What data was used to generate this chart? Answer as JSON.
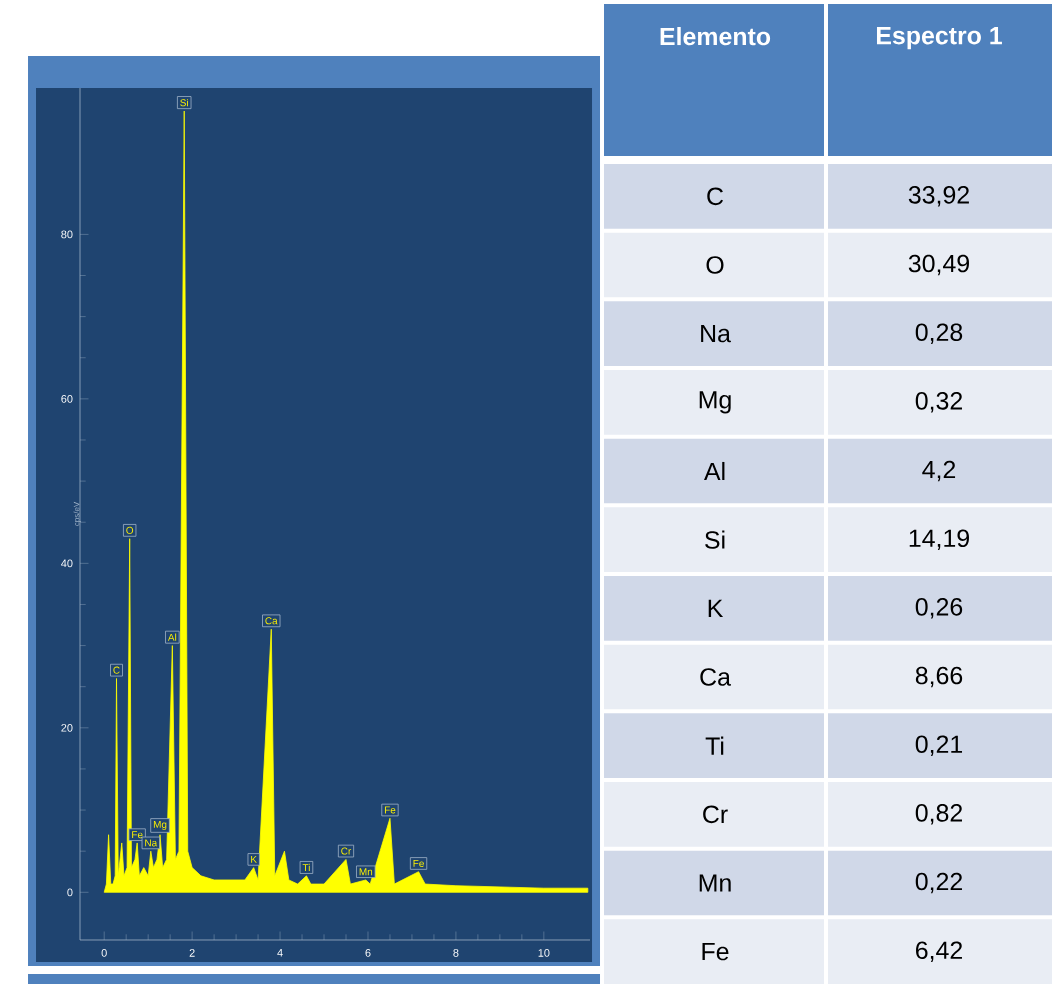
{
  "chart_data": [
    {
      "type": "area",
      "ylabel": "cps/eV",
      "xlim": [
        -0.55,
        11.05
      ],
      "ylim": [
        -5.8,
        97.8
      ],
      "xticks": [
        0,
        2,
        4,
        6,
        8,
        10
      ],
      "yticks": [
        0,
        20,
        40,
        60,
        80
      ],
      "series": [
        {
          "color": "#ffff00",
          "x": [
            0,
            0.05,
            0.1,
            0.15,
            0.2,
            0.25,
            0.28,
            0.32,
            0.4,
            0.45,
            0.52,
            0.58,
            0.62,
            0.7,
            0.75,
            0.8,
            0.9,
            1.0,
            1.06,
            1.12,
            1.2,
            1.27,
            1.33,
            1.42,
            1.55,
            1.62,
            1.7,
            1.82,
            1.9,
            2.0,
            2.2,
            2.5,
            2.8,
            3.0,
            3.2,
            3.4,
            3.5,
            3.8,
            3.88,
            4.1,
            4.2,
            4.4,
            4.6,
            4.7,
            5.0,
            5.5,
            5.6,
            5.95,
            6.05,
            6.5,
            6.6,
            7.15,
            7.3,
            8,
            10,
            11
          ],
          "values": [
            0,
            1,
            7,
            1,
            1,
            2,
            26,
            2,
            6,
            2,
            3,
            43,
            3,
            4,
            6,
            2,
            3,
            2,
            5,
            3,
            4,
            7,
            3,
            4,
            30,
            4,
            5,
            95,
            5,
            3,
            2,
            1.5,
            1.5,
            1.5,
            1.5,
            3,
            1.5,
            32,
            2,
            5,
            1.5,
            1,
            2,
            1,
            1,
            4,
            1,
            1.5,
            1,
            9,
            1,
            2.5,
            1,
            0.8,
            0.5,
            0.5
          ]
        }
      ],
      "annotations": [
        {
          "text": "C",
          "x": 0.28,
          "y": 26
        },
        {
          "text": "O",
          "x": 0.58,
          "y": 43
        },
        {
          "text": "Fe",
          "x": 0.75,
          "y": 6
        },
        {
          "text": "Na",
          "x": 1.06,
          "y": 5
        },
        {
          "text": "Mg",
          "x": 1.27,
          "y": 7
        },
        {
          "text": "Al",
          "x": 1.55,
          "y": 30
        },
        {
          "text": "Si",
          "x": 1.82,
          "y": 95
        },
        {
          "text": "K",
          "x": 3.4,
          "y": 3
        },
        {
          "text": "Ca",
          "x": 3.8,
          "y": 32
        },
        {
          "text": "Ti",
          "x": 4.6,
          "y": 2
        },
        {
          "text": "Cr",
          "x": 5.5,
          "y": 4
        },
        {
          "text": "Mn",
          "x": 5.95,
          "y": 1.5
        },
        {
          "text": "Fe",
          "x": 6.5,
          "y": 9
        },
        {
          "text": "Fe",
          "x": 7.15,
          "y": 2.5
        }
      ]
    },
    {
      "type": "other",
      "xlabel": "Elemento",
      "categories": [
        "C",
        "O",
        "Na",
        "Mg",
        "Al",
        "Si",
        "K",
        "Ca",
        "Ti",
        "Cr",
        "Mn",
        "Fe"
      ],
      "series": [
        {
          "name": "Espectro 1",
          "values": [
            33.92,
            30.49,
            0.28,
            0.32,
            4.2,
            14.19,
            0.26,
            8.66,
            0.21,
            0.82,
            0.22,
            6.42
          ],
          "value_labels": [
            "33,92",
            "30,49",
            "0,28",
            "0,32",
            "4,2",
            "14,19",
            "0,26",
            "8,66",
            "0,21",
            "0,82",
            "0,22",
            "6,42"
          ]
        }
      ]
    }
  ]
}
